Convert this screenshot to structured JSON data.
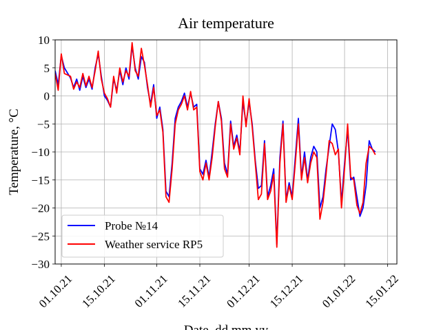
{
  "chart_data": {
    "type": "line",
    "title": "Air temperature",
    "xlabel": "Date, dd.mm.yy",
    "ylabel": "Temperature, °C",
    "xlim": [
      "2021-09-29",
      "2022-01-18"
    ],
    "ylim": [
      -30,
      10
    ],
    "xticks": [
      "2021-10-01",
      "2021-10-15",
      "2021-11-01",
      "2021-11-15",
      "2021-12-01",
      "2021-12-15",
      "2022-01-01",
      "2022-01-15"
    ],
    "xtick_labels": [
      "01.10.21",
      "15.10.21",
      "01.11.21",
      "15.11.21",
      "01.12.21",
      "15.12.21",
      "01.01.22",
      "15.01.22"
    ],
    "yticks": [
      -30,
      -25,
      -20,
      -15,
      -10,
      -5,
      0,
      5,
      10
    ],
    "ytick_labels": [
      "−30",
      "−25",
      "−20",
      "−15",
      "−10",
      "−5",
      "0",
      "5",
      "10"
    ],
    "grid": true,
    "legend_position": "lower-left",
    "series": [
      {
        "name": "Probe №14",
        "color": "#0000ff",
        "points": [
          [
            "2021-09-29",
            4.5
          ],
          [
            "2021-09-30",
            2.0
          ],
          [
            "2021-10-01",
            7.2
          ],
          [
            "2021-10-02",
            5.0
          ],
          [
            "2021-10-04",
            3.2
          ],
          [
            "2021-10-05",
            1.5
          ],
          [
            "2021-10-06",
            3.0
          ],
          [
            "2021-10-07",
            1.0
          ],
          [
            "2021-10-08",
            3.5
          ],
          [
            "2021-10-09",
            1.5
          ],
          [
            "2021-10-10",
            3.0
          ],
          [
            "2021-10-11",
            1.2
          ],
          [
            "2021-10-12",
            5.0
          ],
          [
            "2021-10-13",
            7.5
          ],
          [
            "2021-10-14",
            3.5
          ],
          [
            "2021-10-15",
            0.0
          ],
          [
            "2021-10-16",
            -0.8
          ],
          [
            "2021-10-17",
            -2.0
          ],
          [
            "2021-10-18",
            3.0
          ],
          [
            "2021-10-19",
            1.0
          ],
          [
            "2021-10-20",
            4.5
          ],
          [
            "2021-10-21",
            2.0
          ],
          [
            "2021-10-22",
            5.0
          ],
          [
            "2021-10-23",
            3.0
          ],
          [
            "2021-10-24",
            9.0
          ],
          [
            "2021-10-25",
            5.0
          ],
          [
            "2021-10-26",
            3.0
          ],
          [
            "2021-10-27",
            7.0
          ],
          [
            "2021-10-28",
            6.0
          ],
          [
            "2021-10-29",
            1.5
          ],
          [
            "2021-10-30",
            -1.5
          ],
          [
            "2021-10-31",
            2.0
          ],
          [
            "2021-11-01",
            -4.0
          ],
          [
            "2021-11-02",
            -2.0
          ],
          [
            "2021-11-03",
            -6.0
          ],
          [
            "2021-11-04",
            -17.0
          ],
          [
            "2021-11-05",
            -18.0
          ],
          [
            "2021-11-06",
            -12.0
          ],
          [
            "2021-11-07",
            -4.0
          ],
          [
            "2021-11-08",
            -2.0
          ],
          [
            "2021-11-09",
            -1.0
          ],
          [
            "2021-11-10",
            0.5
          ],
          [
            "2021-11-11",
            -2.0
          ],
          [
            "2021-11-12",
            0.5
          ],
          [
            "2021-11-13",
            -2.0
          ],
          [
            "2021-11-14",
            -1.5
          ],
          [
            "2021-11-15",
            -13.0
          ],
          [
            "2021-11-16",
            -14.0
          ],
          [
            "2021-11-17",
            -11.5
          ],
          [
            "2021-11-18",
            -14.5
          ],
          [
            "2021-11-19",
            -10.0
          ],
          [
            "2021-11-20",
            -5.0
          ],
          [
            "2021-11-21",
            -1.0
          ],
          [
            "2021-11-22",
            -4.0
          ],
          [
            "2021-11-23",
            -12.0
          ],
          [
            "2021-11-24",
            -14.0
          ],
          [
            "2021-11-25",
            -4.5
          ],
          [
            "2021-11-26",
            -9.0
          ],
          [
            "2021-11-27",
            -7.0
          ],
          [
            "2021-11-28",
            -10.0
          ],
          [
            "2021-11-29",
            -1.0
          ],
          [
            "2021-11-30",
            -5.0
          ],
          [
            "2021-12-01",
            -1.0
          ],
          [
            "2021-12-02",
            -5.0
          ],
          [
            "2021-12-03",
            -11.5
          ],
          [
            "2021-12-04",
            -16.5
          ],
          [
            "2021-12-05",
            -16.0
          ],
          [
            "2021-12-06",
            -8.0
          ],
          [
            "2021-12-07",
            -18.0
          ],
          [
            "2021-12-08",
            -16.0
          ],
          [
            "2021-12-09",
            -13.0
          ],
          [
            "2021-12-10",
            -26.5
          ],
          [
            "2021-12-11",
            -11.0
          ],
          [
            "2021-12-12",
            -4.5
          ],
          [
            "2021-12-13",
            -18.5
          ],
          [
            "2021-12-14",
            -15.5
          ],
          [
            "2021-12-15",
            -18.0
          ],
          [
            "2021-12-16",
            -11.0
          ],
          [
            "2021-12-17",
            -4.0
          ],
          [
            "2021-12-18",
            -14.5
          ],
          [
            "2021-12-19",
            -10.0
          ],
          [
            "2021-12-20",
            -15.0
          ],
          [
            "2021-12-21",
            -11.0
          ],
          [
            "2021-12-22",
            -9.0
          ],
          [
            "2021-12-23",
            -10.0
          ],
          [
            "2021-12-24",
            -20.0
          ],
          [
            "2021-12-25",
            -18.0
          ],
          [
            "2021-12-26",
            -13.0
          ],
          [
            "2021-12-27",
            -9.0
          ],
          [
            "2021-12-28",
            -5.0
          ],
          [
            "2021-12-29",
            -6.0
          ],
          [
            "2021-12-30",
            -10.0
          ],
          [
            "2021-12-31",
            -19.0
          ],
          [
            "2022-01-01",
            -12.0
          ],
          [
            "2022-01-02",
            -6.0
          ],
          [
            "2022-01-03",
            -15.0
          ],
          [
            "2022-01-04",
            -14.5
          ],
          [
            "2022-01-05",
            -18.0
          ],
          [
            "2022-01-06",
            -21.5
          ],
          [
            "2022-01-07",
            -20.0
          ],
          [
            "2022-01-08",
            -16.0
          ],
          [
            "2022-01-09",
            -8.0
          ],
          [
            "2022-01-10",
            -9.5
          ],
          [
            "2022-01-11",
            -10.0
          ]
        ]
      },
      {
        "name": "Weather service RP5",
        "color": "#ff0000",
        "points": [
          [
            "2021-09-29",
            4.0
          ],
          [
            "2021-09-30",
            1.0
          ],
          [
            "2021-10-01",
            7.5
          ],
          [
            "2021-10-02",
            4.0
          ],
          [
            "2021-10-04",
            3.5
          ],
          [
            "2021-10-05",
            1.2
          ],
          [
            "2021-10-06",
            2.5
          ],
          [
            "2021-10-07",
            1.5
          ],
          [
            "2021-10-08",
            4.0
          ],
          [
            "2021-10-09",
            1.8
          ],
          [
            "2021-10-10",
            3.5
          ],
          [
            "2021-10-11",
            1.5
          ],
          [
            "2021-10-12",
            4.5
          ],
          [
            "2021-10-13",
            8.0
          ],
          [
            "2021-10-14",
            3.0
          ],
          [
            "2021-10-15",
            0.5
          ],
          [
            "2021-10-16",
            -0.5
          ],
          [
            "2021-10-17",
            -2.0
          ],
          [
            "2021-10-18",
            3.5
          ],
          [
            "2021-10-19",
            0.5
          ],
          [
            "2021-10-20",
            5.0
          ],
          [
            "2021-10-21",
            2.5
          ],
          [
            "2021-10-22",
            4.5
          ],
          [
            "2021-10-23",
            3.5
          ],
          [
            "2021-10-24",
            9.5
          ],
          [
            "2021-10-25",
            4.5
          ],
          [
            "2021-10-26",
            3.5
          ],
          [
            "2021-10-27",
            8.5
          ],
          [
            "2021-10-28",
            5.5
          ],
          [
            "2021-10-29",
            2.0
          ],
          [
            "2021-10-30",
            -2.0
          ],
          [
            "2021-10-31",
            1.5
          ],
          [
            "2021-11-01",
            -3.5
          ],
          [
            "2021-11-02",
            -2.5
          ],
          [
            "2021-11-03",
            -6.5
          ],
          [
            "2021-11-04",
            -18.0
          ],
          [
            "2021-11-05",
            -19.0
          ],
          [
            "2021-11-06",
            -13.0
          ],
          [
            "2021-11-07",
            -5.0
          ],
          [
            "2021-11-08",
            -2.5
          ],
          [
            "2021-11-09",
            -1.5
          ],
          [
            "2021-11-10",
            0.0
          ],
          [
            "2021-11-11",
            -2.5
          ],
          [
            "2021-11-12",
            0.8
          ],
          [
            "2021-11-13",
            -2.5
          ],
          [
            "2021-11-14",
            -2.0
          ],
          [
            "2021-11-15",
            -13.5
          ],
          [
            "2021-11-16",
            -15.0
          ],
          [
            "2021-11-17",
            -12.0
          ],
          [
            "2021-11-18",
            -15.0
          ],
          [
            "2021-11-19",
            -11.0
          ],
          [
            "2021-11-20",
            -5.5
          ],
          [
            "2021-11-21",
            -1.0
          ],
          [
            "2021-11-22",
            -4.5
          ],
          [
            "2021-11-23",
            -13.0
          ],
          [
            "2021-11-24",
            -14.5
          ],
          [
            "2021-11-25",
            -5.0
          ],
          [
            "2021-11-26",
            -9.5
          ],
          [
            "2021-11-27",
            -7.5
          ],
          [
            "2021-11-28",
            -10.5
          ],
          [
            "2021-11-29",
            0.0
          ],
          [
            "2021-11-30",
            -5.5
          ],
          [
            "2021-12-01",
            -0.5
          ],
          [
            "2021-12-02",
            -5.5
          ],
          [
            "2021-12-03",
            -12.0
          ],
          [
            "2021-12-04",
            -18.5
          ],
          [
            "2021-12-05",
            -17.5
          ],
          [
            "2021-12-06",
            -8.5
          ],
          [
            "2021-12-07",
            -18.5
          ],
          [
            "2021-12-08",
            -17.0
          ],
          [
            "2021-12-09",
            -14.0
          ],
          [
            "2021-12-10",
            -27.0
          ],
          [
            "2021-12-11",
            -12.0
          ],
          [
            "2021-12-12",
            -5.0
          ],
          [
            "2021-12-13",
            -19.0
          ],
          [
            "2021-12-14",
            -16.0
          ],
          [
            "2021-12-15",
            -18.5
          ],
          [
            "2021-12-16",
            -12.0
          ],
          [
            "2021-12-17",
            -5.0
          ],
          [
            "2021-12-18",
            -15.0
          ],
          [
            "2021-12-19",
            -11.0
          ],
          [
            "2021-12-20",
            -15.5
          ],
          [
            "2021-12-21",
            -12.0
          ],
          [
            "2021-12-22",
            -10.0
          ],
          [
            "2021-12-23",
            -11.0
          ],
          [
            "2021-12-24",
            -22.0
          ],
          [
            "2021-12-25",
            -19.0
          ],
          [
            "2021-12-26",
            -14.0
          ],
          [
            "2021-12-27",
            -8.0
          ],
          [
            "2021-12-28",
            -8.5
          ],
          [
            "2021-12-29",
            -10.5
          ],
          [
            "2021-12-30",
            -9.5
          ],
          [
            "2021-12-31",
            -20.0
          ],
          [
            "2022-01-01",
            -13.0
          ],
          [
            "2022-01-02",
            -5.0
          ],
          [
            "2022-01-03",
            -14.5
          ],
          [
            "2022-01-04",
            -15.0
          ],
          [
            "2022-01-05",
            -19.5
          ],
          [
            "2022-01-06",
            -21.0
          ],
          [
            "2022-01-07",
            -19.0
          ],
          [
            "2022-01-08",
            -12.0
          ],
          [
            "2022-01-09",
            -9.0
          ],
          [
            "2022-01-10",
            -9.5
          ],
          [
            "2022-01-11",
            -10.5
          ]
        ]
      }
    ]
  }
}
